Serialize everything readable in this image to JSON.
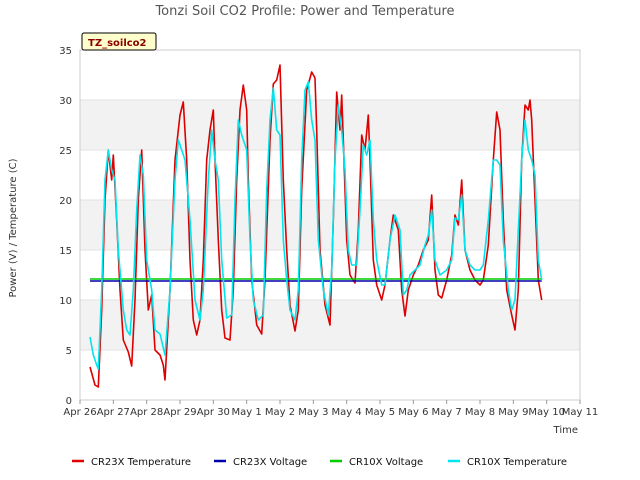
{
  "chart_data": {
    "type": "line",
    "title": "Tonzi Soil CO2 Profile: Power and Temperature",
    "badge": "TZ_soilco2",
    "xlabel": "Time",
    "ylabel": "Power (V) / Temperature (C)",
    "ylim": [
      0,
      35
    ],
    "yticks": [
      "0",
      "5",
      "10",
      "15",
      "20",
      "25",
      "30",
      "35"
    ],
    "xlim": [
      0,
      15
    ],
    "xticks": [
      "Apr 26",
      "Apr 27",
      "Apr 28",
      "Apr 29",
      "Apr 30",
      "May 1",
      "May 2",
      "May 3",
      "May 4",
      "May 5",
      "May 6",
      "May 7",
      "May 8",
      "May 9",
      "May 10",
      "May 11"
    ],
    "grid": "horizontal bands",
    "legend_position": "bottom",
    "colors": {
      "CR23X Temperature": "#dd0000",
      "CR23X Voltage": "#0000aa",
      "CR10X Voltage": "#00cc00",
      "CR10X Temperature": "#00e5ee"
    },
    "series": [
      {
        "name": "CR23X Temperature",
        "points": [
          [
            0.3,
            3.3
          ],
          [
            0.45,
            1.5
          ],
          [
            0.55,
            1.3
          ],
          [
            0.65,
            9
          ],
          [
            0.75,
            20
          ],
          [
            0.85,
            25
          ],
          [
            0.95,
            22
          ],
          [
            1.0,
            24.5
          ],
          [
            1.1,
            18
          ],
          [
            1.2,
            11
          ],
          [
            1.3,
            6
          ],
          [
            1.45,
            4.8
          ],
          [
            1.55,
            3.4
          ],
          [
            1.65,
            10
          ],
          [
            1.75,
            20
          ],
          [
            1.85,
            25
          ],
          [
            1.95,
            15
          ],
          [
            2.05,
            9
          ],
          [
            2.15,
            10.5
          ],
          [
            2.25,
            5
          ],
          [
            2.4,
            4.5
          ],
          [
            2.5,
            3.5
          ],
          [
            2.55,
            2
          ],
          [
            2.7,
            11
          ],
          [
            2.85,
            24
          ],
          [
            3.0,
            28.5
          ],
          [
            3.1,
            29.8
          ],
          [
            3.2,
            24
          ],
          [
            3.3,
            14
          ],
          [
            3.4,
            8
          ],
          [
            3.5,
            6.5
          ],
          [
            3.6,
            8
          ],
          [
            3.7,
            14
          ],
          [
            3.8,
            24
          ],
          [
            3.9,
            27
          ],
          [
            4.0,
            29
          ],
          [
            4.05,
            24
          ],
          [
            4.15,
            16
          ],
          [
            4.25,
            9
          ],
          [
            4.35,
            6.2
          ],
          [
            4.5,
            6
          ],
          [
            4.6,
            11
          ],
          [
            4.7,
            22
          ],
          [
            4.8,
            29
          ],
          [
            4.9,
            31.5
          ],
          [
            5.0,
            29
          ],
          [
            5.05,
            22
          ],
          [
            5.15,
            12
          ],
          [
            5.3,
            7.5
          ],
          [
            5.45,
            6.6
          ],
          [
            5.55,
            12
          ],
          [
            5.7,
            26
          ],
          [
            5.8,
            31.6
          ],
          [
            5.9,
            32
          ],
          [
            6.0,
            33.5
          ],
          [
            6.1,
            22
          ],
          [
            6.2,
            15
          ],
          [
            6.3,
            9.5
          ],
          [
            6.45,
            6.9
          ],
          [
            6.55,
            9
          ],
          [
            6.65,
            21
          ],
          [
            6.8,
            31
          ],
          [
            6.95,
            32.8
          ],
          [
            7.05,
            32.2
          ],
          [
            7.1,
            27
          ],
          [
            7.2,
            15
          ],
          [
            7.35,
            9.5
          ],
          [
            7.5,
            7.5
          ],
          [
            7.6,
            18
          ],
          [
            7.7,
            30.8
          ],
          [
            7.8,
            27
          ],
          [
            7.85,
            30.5
          ],
          [
            7.9,
            26
          ],
          [
            8.0,
            16
          ],
          [
            8.1,
            12.5
          ],
          [
            8.25,
            11.7
          ],
          [
            8.35,
            17
          ],
          [
            8.45,
            26.5
          ],
          [
            8.55,
            25
          ],
          [
            8.65,
            28.5
          ],
          [
            8.7,
            24
          ],
          [
            8.8,
            14
          ],
          [
            8.9,
            11.5
          ],
          [
            9.05,
            10
          ],
          [
            9.15,
            11.5
          ],
          [
            9.3,
            16
          ],
          [
            9.4,
            18.5
          ],
          [
            9.55,
            17
          ],
          [
            9.65,
            11
          ],
          [
            9.75,
            8.4
          ],
          [
            9.85,
            11
          ],
          [
            10.0,
            12.5
          ],
          [
            10.15,
            13.5
          ],
          [
            10.3,
            15
          ],
          [
            10.45,
            16
          ],
          [
            10.55,
            20.5
          ],
          [
            10.65,
            13
          ],
          [
            10.75,
            10.5
          ],
          [
            10.85,
            10.2
          ],
          [
            11.0,
            12
          ],
          [
            11.15,
            14.5
          ],
          [
            11.25,
            18.5
          ],
          [
            11.35,
            17.5
          ],
          [
            11.45,
            22
          ],
          [
            11.55,
            15
          ],
          [
            11.7,
            13
          ],
          [
            11.85,
            12
          ],
          [
            12.0,
            11.5
          ],
          [
            12.1,
            12
          ],
          [
            12.25,
            15.5
          ],
          [
            12.4,
            24
          ],
          [
            12.5,
            28.8
          ],
          [
            12.6,
            27
          ],
          [
            12.7,
            18
          ],
          [
            12.8,
            11
          ],
          [
            12.95,
            8.5
          ],
          [
            13.05,
            7
          ],
          [
            13.15,
            11
          ],
          [
            13.25,
            24
          ],
          [
            13.35,
            29.5
          ],
          [
            13.45,
            29
          ],
          [
            13.5,
            30
          ],
          [
            13.55,
            28
          ],
          [
            13.65,
            20
          ],
          [
            13.75,
            12
          ],
          [
            13.85,
            10
          ]
        ]
      },
      {
        "name": "CR23X Voltage",
        "points": [
          [
            0.3,
            11.9
          ],
          [
            13.85,
            11.9
          ]
        ]
      },
      {
        "name": "CR10X Voltage",
        "points": [
          [
            0.3,
            12.1
          ],
          [
            13.85,
            12.1
          ]
        ]
      },
      {
        "name": "CR10X Temperature",
        "points": [
          [
            0.3,
            6.3
          ],
          [
            0.4,
            4.5
          ],
          [
            0.5,
            3.5
          ],
          [
            0.55,
            3.1
          ],
          [
            0.65,
            11
          ],
          [
            0.75,
            22
          ],
          [
            0.85,
            25
          ],
          [
            0.95,
            23
          ],
          [
            1.05,
            22
          ],
          [
            1.15,
            15
          ],
          [
            1.3,
            9
          ],
          [
            1.4,
            7
          ],
          [
            1.5,
            6.5
          ],
          [
            1.6,
            11
          ],
          [
            1.7,
            19
          ],
          [
            1.8,
            24.5
          ],
          [
            1.9,
            22.5
          ],
          [
            2.0,
            14
          ],
          [
            2.15,
            11
          ],
          [
            2.25,
            7
          ],
          [
            2.4,
            6.6
          ],
          [
            2.55,
            4.5
          ],
          [
            2.7,
            11
          ],
          [
            2.85,
            22
          ],
          [
            2.95,
            26
          ],
          [
            3.05,
            25
          ],
          [
            3.15,
            24
          ],
          [
            3.3,
            18
          ],
          [
            3.45,
            10
          ],
          [
            3.6,
            8
          ],
          [
            3.7,
            11
          ],
          [
            3.85,
            22
          ],
          [
            3.95,
            27
          ],
          [
            4.05,
            24
          ],
          [
            4.15,
            22
          ],
          [
            4.25,
            14
          ],
          [
            4.4,
            8.2
          ],
          [
            4.55,
            8.5
          ],
          [
            4.65,
            20
          ],
          [
            4.75,
            28
          ],
          [
            4.85,
            26.5
          ],
          [
            5.0,
            25
          ],
          [
            5.1,
            16
          ],
          [
            5.2,
            10
          ],
          [
            5.35,
            8
          ],
          [
            5.5,
            8.5
          ],
          [
            5.6,
            21
          ],
          [
            5.7,
            28
          ],
          [
            5.8,
            31.2
          ],
          [
            5.9,
            27
          ],
          [
            6.0,
            26.5
          ],
          [
            6.1,
            16
          ],
          [
            6.2,
            12
          ],
          [
            6.3,
            9
          ],
          [
            6.45,
            8
          ],
          [
            6.55,
            11
          ],
          [
            6.65,
            24
          ],
          [
            6.75,
            31
          ],
          [
            6.85,
            31.8
          ],
          [
            6.95,
            28
          ],
          [
            7.05,
            26
          ],
          [
            7.15,
            16
          ],
          [
            7.3,
            11
          ],
          [
            7.45,
            8.5
          ],
          [
            7.55,
            13
          ],
          [
            7.65,
            24
          ],
          [
            7.75,
            29.5
          ],
          [
            7.85,
            27
          ],
          [
            7.95,
            23
          ],
          [
            8.05,
            15
          ],
          [
            8.15,
            13.5
          ],
          [
            8.3,
            13.5
          ],
          [
            8.4,
            19
          ],
          [
            8.5,
            25.5
          ],
          [
            8.6,
            24.5
          ],
          [
            8.7,
            26
          ],
          [
            8.8,
            18
          ],
          [
            8.9,
            14
          ],
          [
            9.05,
            11.5
          ],
          [
            9.15,
            11.5
          ],
          [
            9.3,
            16
          ],
          [
            9.45,
            18.5
          ],
          [
            9.6,
            17
          ],
          [
            9.7,
            10.5
          ],
          [
            9.8,
            11
          ],
          [
            9.9,
            12.5
          ],
          [
            10.05,
            13
          ],
          [
            10.2,
            13.5
          ],
          [
            10.35,
            15.5
          ],
          [
            10.45,
            16.5
          ],
          [
            10.55,
            19
          ],
          [
            10.65,
            14
          ],
          [
            10.8,
            12.5
          ],
          [
            11.0,
            13
          ],
          [
            11.15,
            14
          ],
          [
            11.25,
            18.2
          ],
          [
            11.35,
            18
          ],
          [
            11.45,
            20.5
          ],
          [
            11.55,
            15
          ],
          [
            11.7,
            13.5
          ],
          [
            11.85,
            13
          ],
          [
            12.0,
            13
          ],
          [
            12.1,
            13.5
          ],
          [
            12.25,
            18
          ],
          [
            12.4,
            24
          ],
          [
            12.5,
            24
          ],
          [
            12.6,
            23.5
          ],
          [
            12.7,
            16
          ],
          [
            12.85,
            11
          ],
          [
            12.95,
            9
          ],
          [
            13.05,
            10
          ],
          [
            13.15,
            17
          ],
          [
            13.25,
            24
          ],
          [
            13.35,
            28
          ],
          [
            13.45,
            25
          ],
          [
            13.55,
            24
          ],
          [
            13.65,
            22.5
          ],
          [
            13.75,
            14
          ],
          [
            13.85,
            12
          ]
        ]
      }
    ]
  }
}
